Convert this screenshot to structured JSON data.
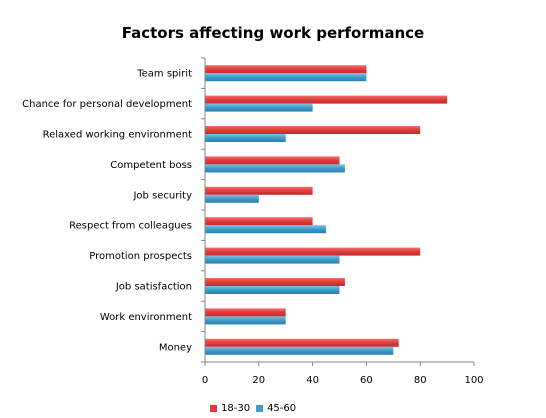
{
  "chart_data": {
    "type": "bar",
    "orientation": "horizontal",
    "title": "Factors affecting work performance",
    "xlabel": "",
    "ylabel": "",
    "xlim": [
      0,
      100
    ],
    "xticks": [
      0,
      20,
      40,
      60,
      80,
      100
    ],
    "grid": false,
    "legend_position": "bottom",
    "categories": [
      "Team spirit",
      "Chance for personal development",
      "Relaxed working environment",
      "Competent boss",
      "Job security",
      "Respect from colleagues",
      "Promotion prospects",
      "Job satisfaction",
      "Work environment",
      "Money"
    ],
    "series": [
      {
        "name": "18-30",
        "color": "#e03a3a",
        "values": [
          60,
          90,
          80,
          50,
          40,
          40,
          80,
          52,
          30,
          72
        ]
      },
      {
        "name": "45-60",
        "color": "#3d9bc9",
        "values": [
          60,
          40,
          30,
          52,
          20,
          45,
          50,
          50,
          30,
          70
        ]
      }
    ]
  }
}
